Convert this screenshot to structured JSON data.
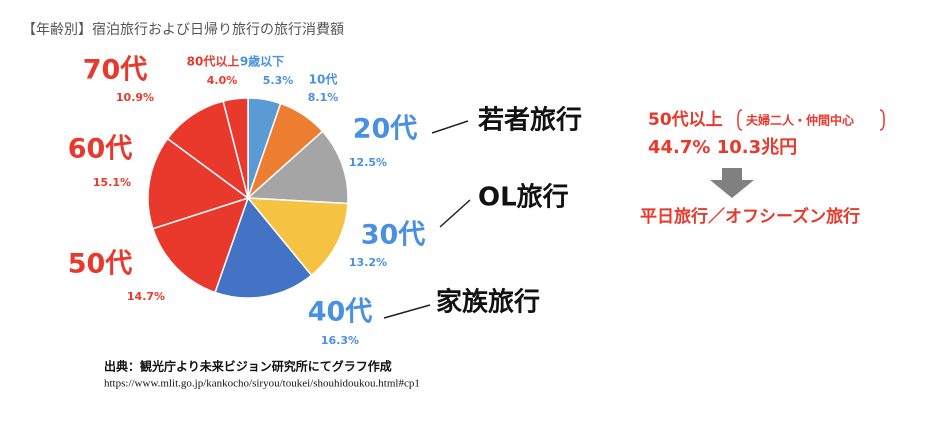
{
  "chart_data": {
    "type": "pie",
    "title": "【年齢別】宿泊旅行および日帰り旅行の旅行消費額",
    "categories": [
      "9歳以下",
      "10代",
      "20代",
      "30代",
      "40代",
      "50代",
      "60代",
      "70代",
      "80代以上"
    ],
    "values": [
      5.3,
      8.1,
      12.5,
      13.2,
      16.3,
      14.7,
      15.1,
      10.9,
      4.0
    ],
    "value_labels": [
      "5.3%",
      "8.1%",
      "12.5%",
      "13.2%",
      "16.3%",
      "14.7%",
      "15.1%",
      "10.9%",
      "4.0%"
    ],
    "colors": [
      "#5b9bd5",
      "#ed7d31",
      "#a5a5a5",
      "#f5c242",
      "#4472c4",
      "#e8392c",
      "#e8392c",
      "#e8392c",
      "#e8392c"
    ],
    "annotations": [
      "若者旅行",
      "OL旅行",
      "家族旅行"
    ],
    "source": "出典：観光庁より未来ビジョン研究所にてグラフ作成",
    "source_url": "https://www.mlit.go.jp/kankocho/siryou/toukei/shouhidoukou.html#cp1"
  },
  "side_note": {
    "heading": "50代以上",
    "bracket": "夫婦二人・仲間中心",
    "figures": "44.7% 10.3兆円",
    "conclusion": "平日旅行／オフシーズン旅行"
  }
}
